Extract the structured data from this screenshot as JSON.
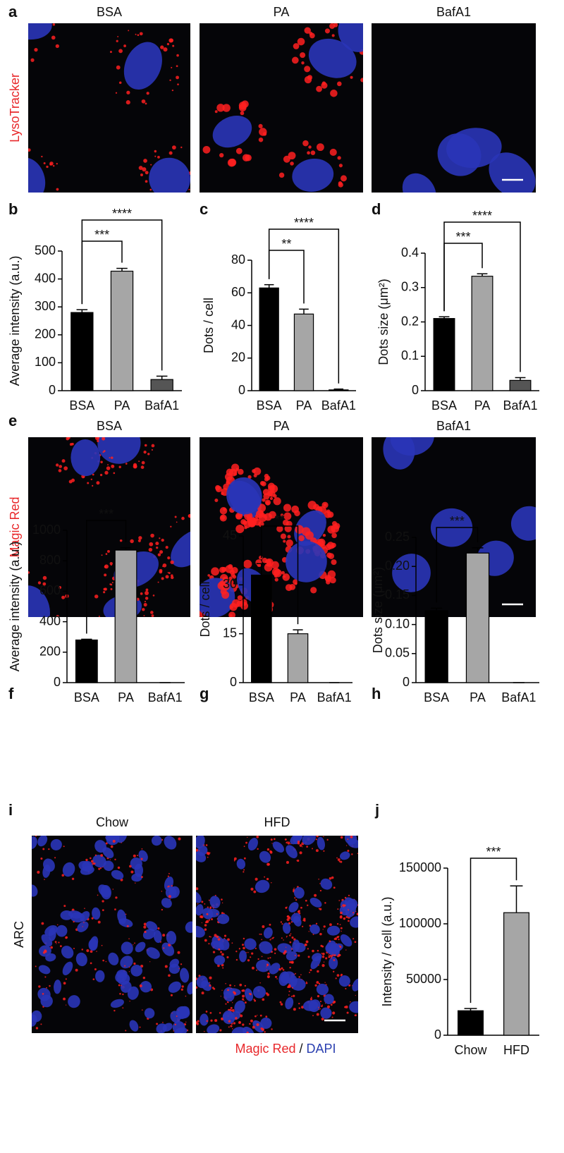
{
  "panel_labels": [
    "a",
    "b",
    "c",
    "d",
    "e",
    "f",
    "g",
    "h",
    "i",
    "j"
  ],
  "image_rows": [
    {
      "stain": "LysoTracker",
      "conditions": [
        "BSA",
        "PA",
        "BafA1"
      ]
    },
    {
      "stain": "Magic Red",
      "conditions": [
        "BSA",
        "PA",
        "BafA1"
      ]
    },
    {
      "region": "ARC",
      "conditions": [
        "Chow",
        "HFD"
      ],
      "caption": {
        "stain1": "Magic Red",
        "separator": "/",
        "stain2": "DAPI"
      }
    }
  ],
  "chart_data": [
    {
      "type": "bar",
      "ylabel": "Average intensity (a.u.)",
      "categories": [
        "BSA",
        "PA",
        "BafA1"
      ],
      "values": [
        280,
        428,
        40
      ],
      "errors": [
        10,
        10,
        12
      ],
      "colors": [
        "#000000",
        "#a6a6a6",
        "#555555"
      ],
      "ylim": [
        0,
        500
      ],
      "yticks": [
        0,
        100,
        200,
        300,
        400,
        500
      ],
      "annotations": [
        {
          "from": 0,
          "to": 1,
          "label": "***"
        },
        {
          "from": 0,
          "to": 2,
          "label": "****"
        }
      ]
    },
    {
      "type": "bar",
      "ylabel": "Dots / cell",
      "categories": [
        "BSA",
        "PA",
        "BafA1"
      ],
      "values": [
        63,
        47,
        0.5
      ],
      "errors": [
        2,
        3,
        0.5
      ],
      "colors": [
        "#000000",
        "#a6a6a6",
        "#555555"
      ],
      "ylim": [
        0,
        80
      ],
      "yticks": [
        0,
        20,
        40,
        60,
        80
      ],
      "annotations": [
        {
          "from": 0,
          "to": 1,
          "label": "**"
        },
        {
          "from": 0,
          "to": 2,
          "label": "****"
        }
      ]
    },
    {
      "type": "bar",
      "ylabel": "Dots size (μm²)",
      "categories": [
        "BSA",
        "PA",
        "BafA1"
      ],
      "values": [
        0.21,
        0.333,
        0.03
      ],
      "errors": [
        0.005,
        0.007,
        0.008
      ],
      "colors": [
        "#000000",
        "#a6a6a6",
        "#555555"
      ],
      "ylim": [
        0,
        0.4
      ],
      "yticks": [
        0,
        0.1,
        0.2,
        0.3,
        0.4
      ],
      "annotations": [
        {
          "from": 0,
          "to": 1,
          "label": "***"
        },
        {
          "from": 0,
          "to": 2,
          "label": "****"
        }
      ]
    },
    {
      "type": "bar",
      "ylabel": "Average intensity (a.u.)",
      "categories": [
        "BSA",
        "PA",
        "BafA1"
      ],
      "values": [
        280,
        870,
        0
      ],
      "errors": [
        5,
        15,
        0
      ],
      "colors": [
        "#000000",
        "#a6a6a6",
        "#555555"
      ],
      "ylim": [
        0,
        1000
      ],
      "yticks": [
        0,
        200,
        400,
        600,
        800,
        1000
      ],
      "annotations": [
        {
          "from": 0,
          "to": 1,
          "label": "***"
        }
      ]
    },
    {
      "type": "bar",
      "ylabel": "Dots / cell",
      "categories": [
        "BSA",
        "PA",
        "BafA1"
      ],
      "values": [
        33,
        15,
        0
      ],
      "errors": [
        3.5,
        1.2,
        0
      ],
      "colors": [
        "#000000",
        "#a6a6a6",
        "#555555"
      ],
      "ylim": [
        0,
        45
      ],
      "yticks": [
        0,
        15,
        30,
        45
      ],
      "annotations": [
        {
          "from": 0,
          "to": 1,
          "label": "**"
        }
      ]
    },
    {
      "type": "bar",
      "ylabel": "Dots size  (μm²)",
      "categories": [
        "BSA",
        "PA",
        "BafA1"
      ],
      "values": [
        0.124,
        0.223,
        0
      ],
      "errors": [
        0.004,
        0.009,
        0
      ],
      "colors": [
        "#000000",
        "#a6a6a6",
        "#555555"
      ],
      "ylim": [
        0,
        0.25
      ],
      "yticks": [
        0,
        0.05,
        {
          "value": 0.1,
          "label": "0.10"
        },
        0.15,
        {
          "value": 0.2,
          "label": "0.20"
        },
        0.25
      ],
      "annotations": [
        {
          "from": 0,
          "to": 1,
          "label": "***"
        }
      ]
    },
    {
      "type": "bar",
      "ylabel": "Intensity / cell (a.u.)",
      "categories": [
        "Chow",
        "HFD"
      ],
      "values": [
        22000,
        110000
      ],
      "errors": [
        2000,
        24000
      ],
      "colors": [
        "#000000",
        "#a6a6a6"
      ],
      "ylim": [
        0,
        150000
      ],
      "yticks": [
        0,
        50000,
        100000,
        150000
      ],
      "annotations": [
        {
          "from": 0,
          "to": 1,
          "label": "***"
        }
      ]
    }
  ]
}
